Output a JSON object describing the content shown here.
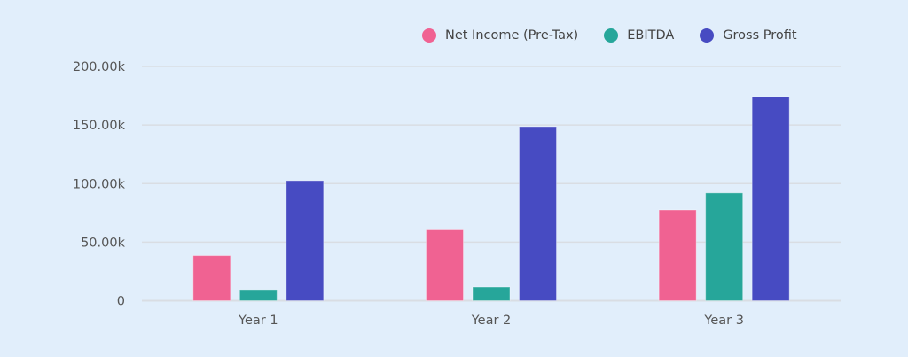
{
  "chart_data": {
    "type": "bar",
    "title": "",
    "xlabel": "",
    "ylabel": "",
    "categories": [
      "Year 1",
      "Year 2",
      "Year 3"
    ],
    "series": [
      {
        "name": "Net Income (Pre-Tax)",
        "color": "#f06292",
        "values": [
          38500,
          60500,
          77500
        ]
      },
      {
        "name": "EBITDA",
        "color": "#26a69a",
        "values": [
          9500,
          11700,
          92000
        ]
      },
      {
        "name": "Gross Profit",
        "color": "#474bc2",
        "values": [
          102500,
          148600,
          174300
        ]
      }
    ],
    "ylim": [
      0,
      200000
    ],
    "yticks": [
      0,
      50000,
      100000,
      150000,
      200000
    ],
    "ytick_labels": [
      "0",
      "50.00k",
      "100.00k",
      "150.00k",
      "200.00k"
    ],
    "grid": true,
    "legend_position": "top-right"
  },
  "colors": {
    "background": "#e1eefb",
    "gridline": "#d9dde3",
    "axis_text": "#555555"
  }
}
